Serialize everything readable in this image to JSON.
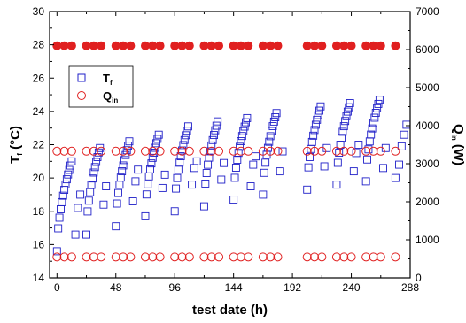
{
  "chart_data": {
    "type": "scatter",
    "xlabel": "test date (h)",
    "ylabel_left": {
      "main": "T",
      "sub": "f",
      "unit": " (°C)"
    },
    "ylabel_right": {
      "main": "Q",
      "sub": "in",
      "unit": " (W)"
    },
    "xlim": [
      -6,
      288
    ],
    "ylim_left": [
      14,
      30
    ],
    "ylim_right": [
      0,
      7000
    ],
    "xticks": [
      0,
      48,
      96,
      144,
      192,
      240,
      288
    ],
    "yticks_left": [
      14,
      16,
      18,
      20,
      22,
      24,
      26,
      28,
      30
    ],
    "yticks_right": [
      0,
      1000,
      2000,
      3000,
      4000,
      5000,
      6000,
      7000
    ],
    "legend_position": "upper-left",
    "series": [
      {
        "name": "T",
        "name_sub": "f",
        "axis": "left",
        "marker": "square",
        "color": "#1f1fc8",
        "cycles": [
          {
            "start": 0,
            "base": 15.6,
            "peak": 21.0,
            "width": 12,
            "off": [
              16.6,
              18.2,
              19.0
            ]
          },
          {
            "start": 24,
            "base": 16.6,
            "peak": 21.8,
            "width": 11,
            "off": [
              18.4,
              19.5
            ]
          },
          {
            "start": 48,
            "base": 17.1,
            "peak": 22.2,
            "width": 11,
            "off": [
              18.6,
              19.8,
              20.5
            ]
          },
          {
            "start": 72,
            "base": 17.7,
            "peak": 22.6,
            "width": 11,
            "off": [
              19.4,
              20.2
            ]
          },
          {
            "start": 96,
            "base": 18.0,
            "peak": 23.1,
            "width": 11,
            "off": [
              19.6,
              20.6,
              21.0
            ]
          },
          {
            "start": 120,
            "base": 18.3,
            "peak": 23.4,
            "width": 11,
            "off": [
              19.9,
              20.9
            ]
          },
          {
            "start": 144,
            "base": 18.7,
            "peak": 23.6,
            "width": 11,
            "off": [
              19.5,
              20.8,
              21.3
            ]
          },
          {
            "start": 168,
            "base": 19.0,
            "peak": 23.9,
            "width": 11,
            "off": [
              20.4,
              21.6
            ]
          },
          {
            "start": 204,
            "base": 19.3,
            "peak": 24.3,
            "width": 11,
            "off": [
              20.7,
              21.8
            ]
          },
          {
            "start": 228,
            "base": 19.6,
            "peak": 24.5,
            "width": 11,
            "off": [
              20.4,
              21.5,
              22.0
            ]
          },
          {
            "start": 252,
            "base": 19.8,
            "peak": 24.7,
            "width": 11,
            "off": [
              20.6,
              21.8
            ]
          },
          {
            "start": 276,
            "base": 20.0,
            "peak": 23.5,
            "width": 0,
            "off": [
              20.8,
              21.9,
              22.6,
              23.2
            ]
          }
        ]
      },
      {
        "name": "Q",
        "name_sub": "in",
        "axis": "right",
        "marker": "circle",
        "color": "#e02020",
        "levels": [
          6100,
          3330,
          550
        ],
        "groups": [
          {
            "start": 0,
            "end": 12
          },
          {
            "start": 24,
            "end": 36
          },
          {
            "start": 48,
            "end": 60
          },
          {
            "start": 72,
            "end": 84
          },
          {
            "start": 96,
            "end": 108
          },
          {
            "start": 120,
            "end": 132
          },
          {
            "start": 144,
            "end": 156
          },
          {
            "start": 168,
            "end": 180
          },
          {
            "start": 204,
            "end": 216
          },
          {
            "start": 228,
            "end": 240
          },
          {
            "start": 252,
            "end": 264
          },
          {
            "start": 276,
            "end": 276
          }
        ]
      }
    ]
  }
}
